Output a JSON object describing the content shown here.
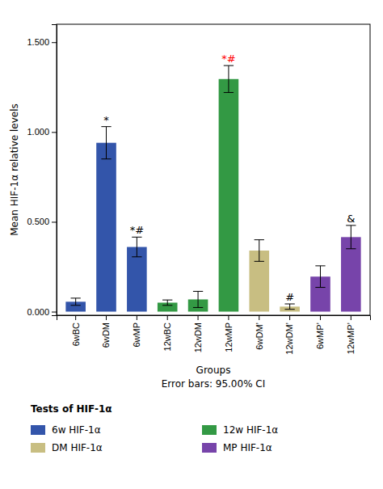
{
  "chart_data": {
    "type": "bar",
    "categories": [
      "6wBC",
      "6wDM",
      "6wMP",
      "12wBC",
      "12wDM",
      "12wMP",
      "6wDM’",
      "12wDM’",
      "6wMP’",
      "12wMP’"
    ],
    "values": [
      0.055,
      0.94,
      0.36,
      0.05,
      0.068,
      1.295,
      0.34,
      0.028,
      0.195,
      0.415
    ],
    "errors": [
      0.02,
      0.09,
      0.055,
      0.015,
      0.045,
      0.075,
      0.06,
      0.015,
      0.06,
      0.065
    ],
    "colors": [
      "#3355aa",
      "#3355aa",
      "#3355aa",
      "#339944",
      "#339944",
      "#339944",
      "#c8be82",
      "#c8be82",
      "#7744aa",
      "#7744aa"
    ],
    "ylabel": "Mean HIF-1α relative levels",
    "xlabel": [
      "Groups",
      "Error bars: 95.00% CI"
    ],
    "ylim": [
      -0.02,
      1.6
    ],
    "yticks": [
      {
        "value": 0,
        "label": "0.000"
      },
      {
        "value": 0.5,
        "label": "0.500"
      },
      {
        "value": 1,
        "label": "1.000"
      },
      {
        "value": 1.5,
        "label": "1.500"
      }
    ],
    "annotations": [
      {
        "category": "6wDM",
        "text": "*",
        "color": "black"
      },
      {
        "category": "6wMP",
        "text": "*#",
        "color": "black"
      },
      {
        "category": "12wMP",
        "text": "*#",
        "color": "red"
      },
      {
        "category": "12wDM’",
        "text": "#",
        "color": "black"
      },
      {
        "category": "12wMP’",
        "text": "&",
        "color": "black"
      }
    ],
    "legend": "bottom",
    "legend_title": "Tests of HIF-1α",
    "legend_entries": [
      {
        "label": "6w HIF-1α",
        "color": "#3355aa"
      },
      {
        "label": "12w HIF-1α",
        "color": "#339944"
      },
      {
        "label": "DM HIF-1α",
        "color": "#c8be82"
      },
      {
        "label": "MP HIF-1α",
        "color": "#7744aa"
      }
    ],
    "grid": false
  }
}
